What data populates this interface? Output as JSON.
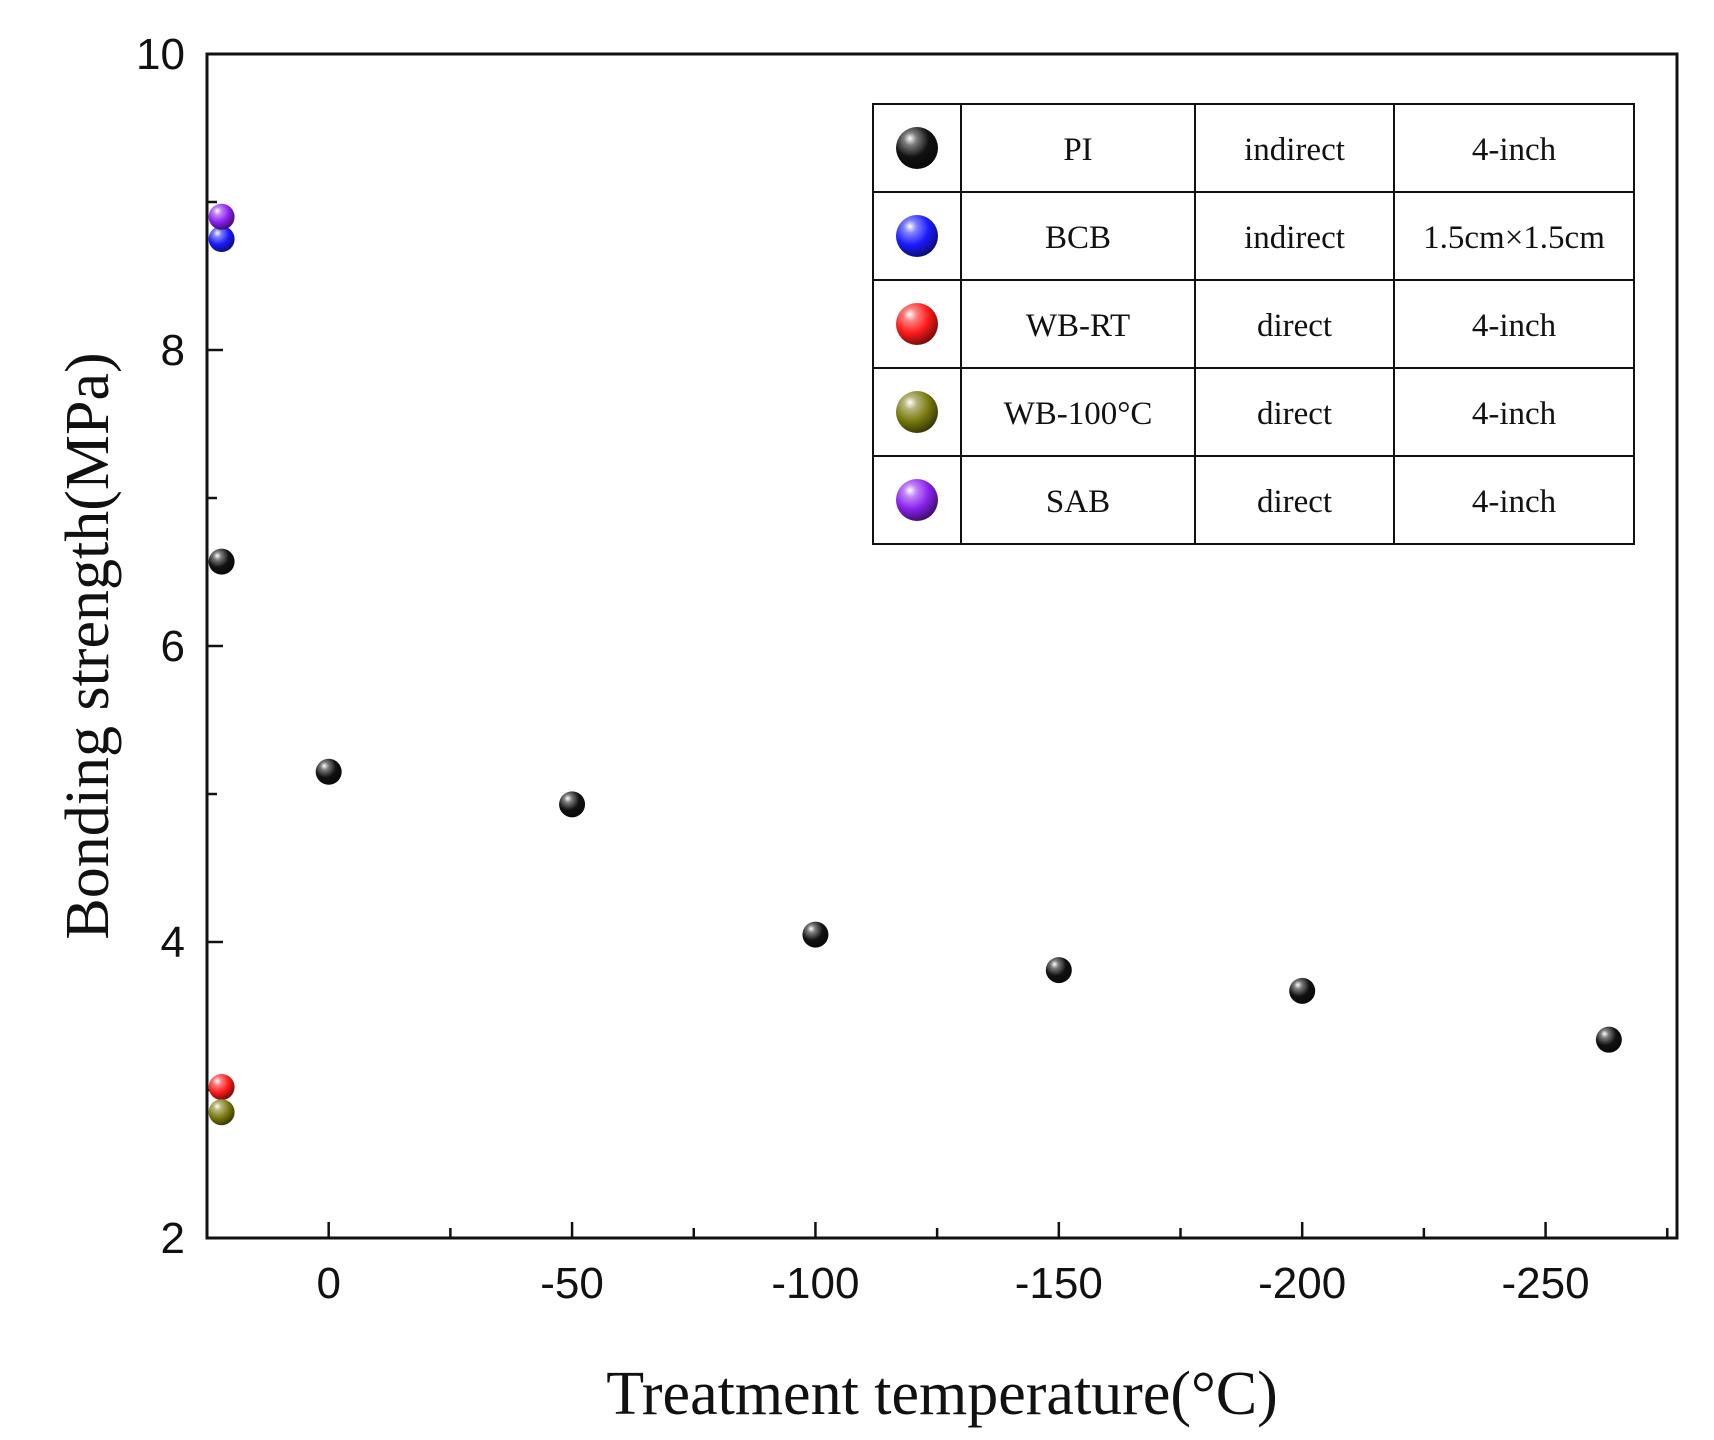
{
  "chart_data": {
    "type": "scatter",
    "title": "",
    "xlabel": "Treatment temperature(°C)",
    "ylabel": "Bonding strength(MPa)",
    "xlim": [
      25,
      -277
    ],
    "ylim": [
      2,
      10
    ],
    "x_ticks": [
      0,
      -50,
      -100,
      -150,
      -200,
      -250
    ],
    "x_tick_labels": [
      "0",
      "-50",
      "-100",
      "-150",
      "-200",
      "-250"
    ],
    "y_ticks": [
      2,
      4,
      6,
      8,
      10
    ],
    "y_tick_labels": [
      "2",
      "4",
      "6",
      "8",
      "10"
    ],
    "legend_position": "top-right",
    "series": [
      {
        "name": "PI",
        "method": "indirect",
        "size": "4-inch",
        "color": "#111111",
        "points": [
          {
            "x": 22,
            "y": 6.57
          },
          {
            "x": 0,
            "y": 5.15
          },
          {
            "x": -50,
            "y": 4.93
          },
          {
            "x": -100,
            "y": 4.05
          },
          {
            "x": -150,
            "y": 3.81
          },
          {
            "x": -200,
            "y": 3.67
          },
          {
            "x": -263,
            "y": 3.34
          }
        ]
      },
      {
        "name": "BCB",
        "method": "indirect",
        "size": "1.5cm×1.5cm",
        "color": "#1a1aff",
        "points": [
          {
            "x": 22,
            "y": 8.75
          }
        ]
      },
      {
        "name": "WB-RT",
        "method": "direct",
        "size": "4-inch",
        "color": "#ff1a1a",
        "points": [
          {
            "x": 22,
            "y": 3.02
          }
        ]
      },
      {
        "name": "WB-100°C",
        "method": "direct",
        "size": "4-inch",
        "color": "#7a7a10",
        "points": [
          {
            "x": 22,
            "y": 2.85
          }
        ]
      },
      {
        "name": "SAB",
        "method": "direct",
        "size": "4-inch",
        "color": "#8a20ee",
        "points": [
          {
            "x": 22,
            "y": 8.9
          }
        ]
      }
    ]
  }
}
